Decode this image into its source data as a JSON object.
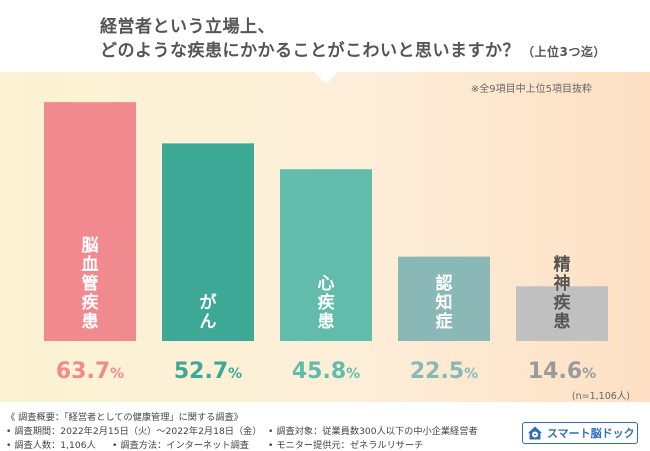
{
  "header": {
    "line1": "経営者という立場上、",
    "line2": "どのような疾患にかかることがこわいと思いますか？",
    "line2_sub": "（上位3つ迄）"
  },
  "note": "※全9項目中上位5項目抜粋",
  "sample": "(n=1,106人)",
  "chart_data": {
    "type": "bar",
    "categories": [
      "脳血管疾患",
      "がん",
      "心疾患",
      "認知症",
      "精神疾患"
    ],
    "values": [
      63.7,
      52.7,
      45.8,
      22.5,
      14.6
    ],
    "value_labels": [
      "63.7%",
      "52.7%",
      "45.8%",
      "22.5%",
      "14.6%"
    ],
    "colors": [
      "#f08a8f",
      "#3ea896",
      "#62bcac",
      "#8ab8b6",
      "#c0c0c0"
    ],
    "label_colors": [
      "#f08a8f",
      "#3ea896",
      "#62bcac",
      "#8ab8b6",
      "#9a9a9a"
    ],
    "category_text_colors": [
      "#ffffff",
      "#ffffff",
      "#ffffff",
      "#ffffff",
      "#555555"
    ],
    "ylim": [
      0,
      100
    ],
    "grid": false
  },
  "footer": {
    "title": "《 調査概要：「経営者としての健康管理」に関する調査》",
    "period": "• 調査期間：2022年2月15日（火）～2022年2月18日（金）",
    "count": "• 調査人数：1,106人",
    "method": "• 調査方法：インターネット調査",
    "target": "• 調査対象：従業員数300人以下の中小企業経営者",
    "provider": "• モニター提供元：ゼネラルリサーチ"
  },
  "logo": {
    "text": "スマート脳ドック",
    "icon": "brain-house-icon",
    "color": "#2d6fb8"
  }
}
